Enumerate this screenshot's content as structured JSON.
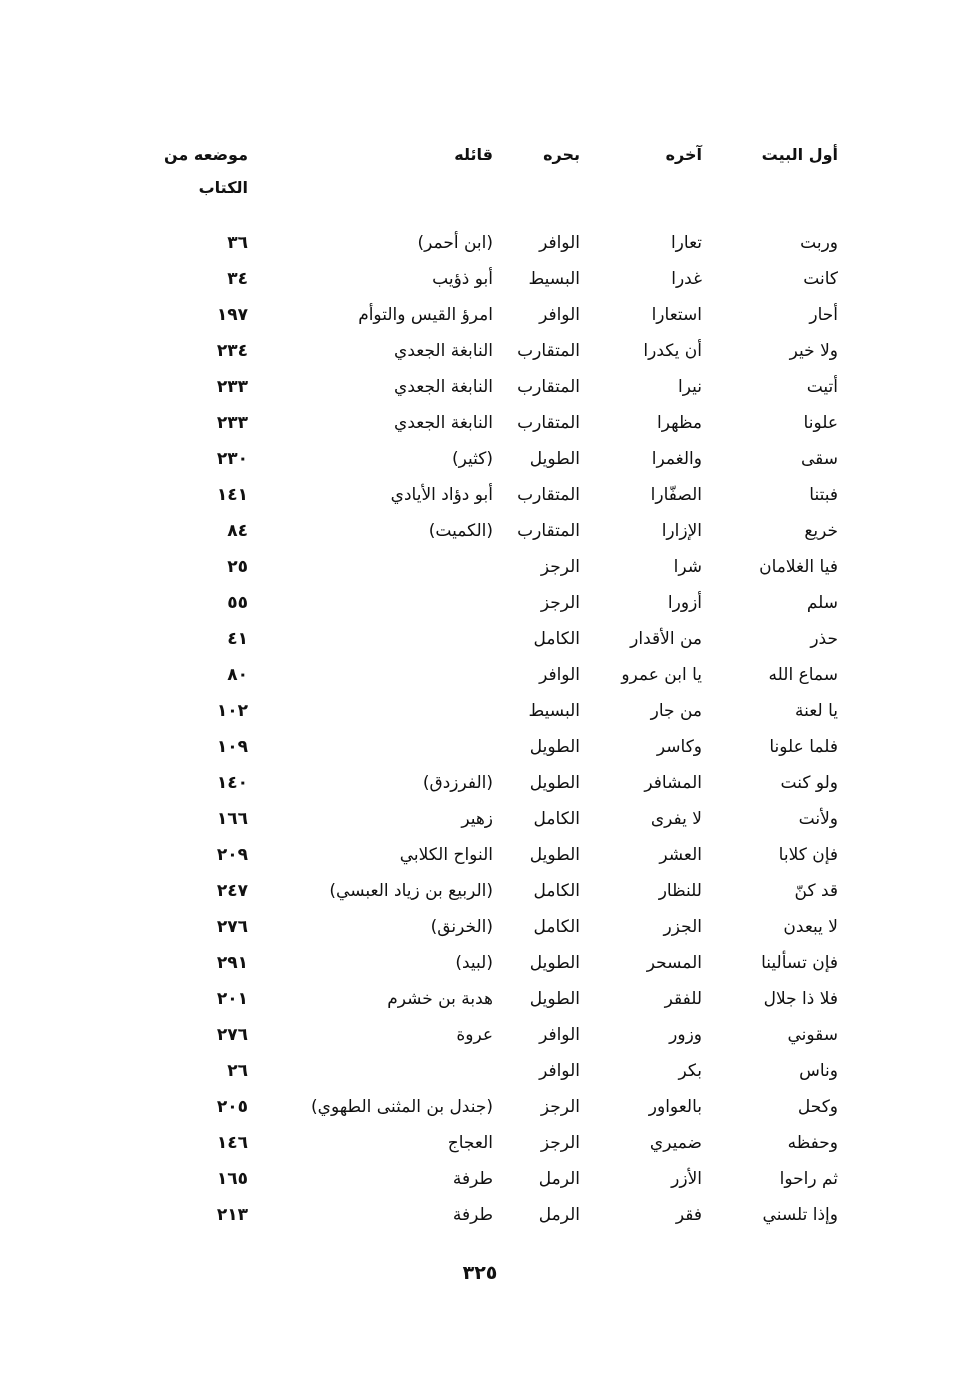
{
  "header": {
    "first_of_verse": "أول البيت",
    "end_of_verse": "آخره",
    "meter": "بحره",
    "poet": "قائله",
    "location_line1": "موضعه من",
    "location_line2": "الكتاب"
  },
  "rows": [
    {
      "first": "وربت",
      "last": "تعارا",
      "meter": "الوافر",
      "poet": "(ابن أحمر)",
      "page": "٣٦"
    },
    {
      "first": "كانت",
      "last": "غدرا",
      "meter": "البسيط",
      "poet": "أبو ذؤيب",
      "page": "٣٤"
    },
    {
      "first": "أحار",
      "last": "استعارا",
      "meter": "الوافر",
      "poet": "امرؤ القيس والتوأم",
      "page": "١٩٧"
    },
    {
      "first": "ولا خير",
      "last": "أن يكدرا",
      "meter": "المتقارب",
      "poet": "النابغة الجعدي",
      "page": "٢٣٤"
    },
    {
      "first": "أتيت",
      "last": "نيرا",
      "meter": "المتقارب",
      "poet": "النابغة الجعدي",
      "page": "٢٣٣"
    },
    {
      "first": "علونا",
      "last": "مظهرا",
      "meter": "المتقارب",
      "poet": "النابغة الجعدي",
      "page": "٢٣٣"
    },
    {
      "first": "سقى",
      "last": "والغمرا",
      "meter": "الطويل",
      "poet": "(كثير)",
      "page": "٢٣٠"
    },
    {
      "first": "فبتنا",
      "last": "الصفّارا",
      "meter": "المتقارب",
      "poet": "أبو دؤاد الأيادي",
      "page": "١٤١"
    },
    {
      "first": "خريع",
      "last": "الإزارا",
      "meter": "المتقارب",
      "poet": "(الكميت)",
      "page": "٨٤"
    },
    {
      "first": "فيا الغلامان",
      "last": "شرا",
      "meter": "الرجز",
      "poet": "",
      "page": "٢٥"
    },
    {
      "first": "سلم",
      "last": "أزورا",
      "meter": "الرجز",
      "poet": "",
      "page": "٥٥"
    },
    {
      "first": "حذر",
      "last": "من الأقدار",
      "meter": "الكامل",
      "poet": "",
      "page": "٤١"
    },
    {
      "first": "سماع الله",
      "last": "يا ابن عمرو",
      "meter": "الوافر",
      "poet": "",
      "page": "٨٠"
    },
    {
      "first": "يا لعنة",
      "last": "من جار",
      "meter": "البسيط",
      "poet": "",
      "page": "١٠٢"
    },
    {
      "first": "فلما علونا",
      "last": "وكاسر",
      "meter": "الطويل",
      "poet": "",
      "page": "١٠٩"
    },
    {
      "first": "ولو كنت",
      "last": "المشافر",
      "meter": "الطويل",
      "poet": "(الفرزدق)",
      "page": "١٤٠"
    },
    {
      "first": "ولأنت",
      "last": "لا يفرى",
      "meter": "الكامل",
      "poet": "زهير",
      "page": "١٦٦"
    },
    {
      "first": "فإن كلابا",
      "last": "العشر",
      "meter": "الطويل",
      "poet": "النواح الكلابي",
      "page": "٢٠٩"
    },
    {
      "first": "قد كنّ",
      "last": "للنظار",
      "meter": "الكامل",
      "poet": "(الربيع بن زياد العبسي)",
      "page": "٢٤٧"
    },
    {
      "first": "لا يبعدن",
      "last": "الجزر",
      "meter": "الكامل",
      "poet": "(الخرنق)",
      "page": "٢٧٦"
    },
    {
      "first": "فإن تسألينا",
      "last": "المسحر",
      "meter": "الطويل",
      "poet": "(لبيد)",
      "page": "٢٩١"
    },
    {
      "first": "فلا ذا جلال",
      "last": "للفقر",
      "meter": "الطويل",
      "poet": "هدبة بن خشرم",
      "page": "٢٠١"
    },
    {
      "first": "سقوني",
      "last": "وزور",
      "meter": "الوافر",
      "poet": "عروة",
      "page": "٢٧٦"
    },
    {
      "first": "وناس",
      "last": "بكر",
      "meter": "الوافر",
      "poet": "",
      "page": "٢٦"
    },
    {
      "first": "وكحل",
      "last": "بالعواور",
      "meter": "الرجز",
      "poet": "(جندل بن المثنى الطهوي)",
      "page": "٢٠٥"
    },
    {
      "first": "وحفظه",
      "last": "ضميري",
      "meter": "الرجز",
      "poet": "العجاج",
      "page": "١٤٦"
    },
    {
      "first": "ثم راحوا",
      "last": "الأزر",
      "meter": "الرمل",
      "poet": "طرفة",
      "page": "١٦٥"
    },
    {
      "first": "وإذا تلسني",
      "last": "فقر",
      "meter": "الرمل",
      "poet": "طرفة",
      "page": "٢١٣"
    }
  ],
  "page_number": "٣٢٥"
}
